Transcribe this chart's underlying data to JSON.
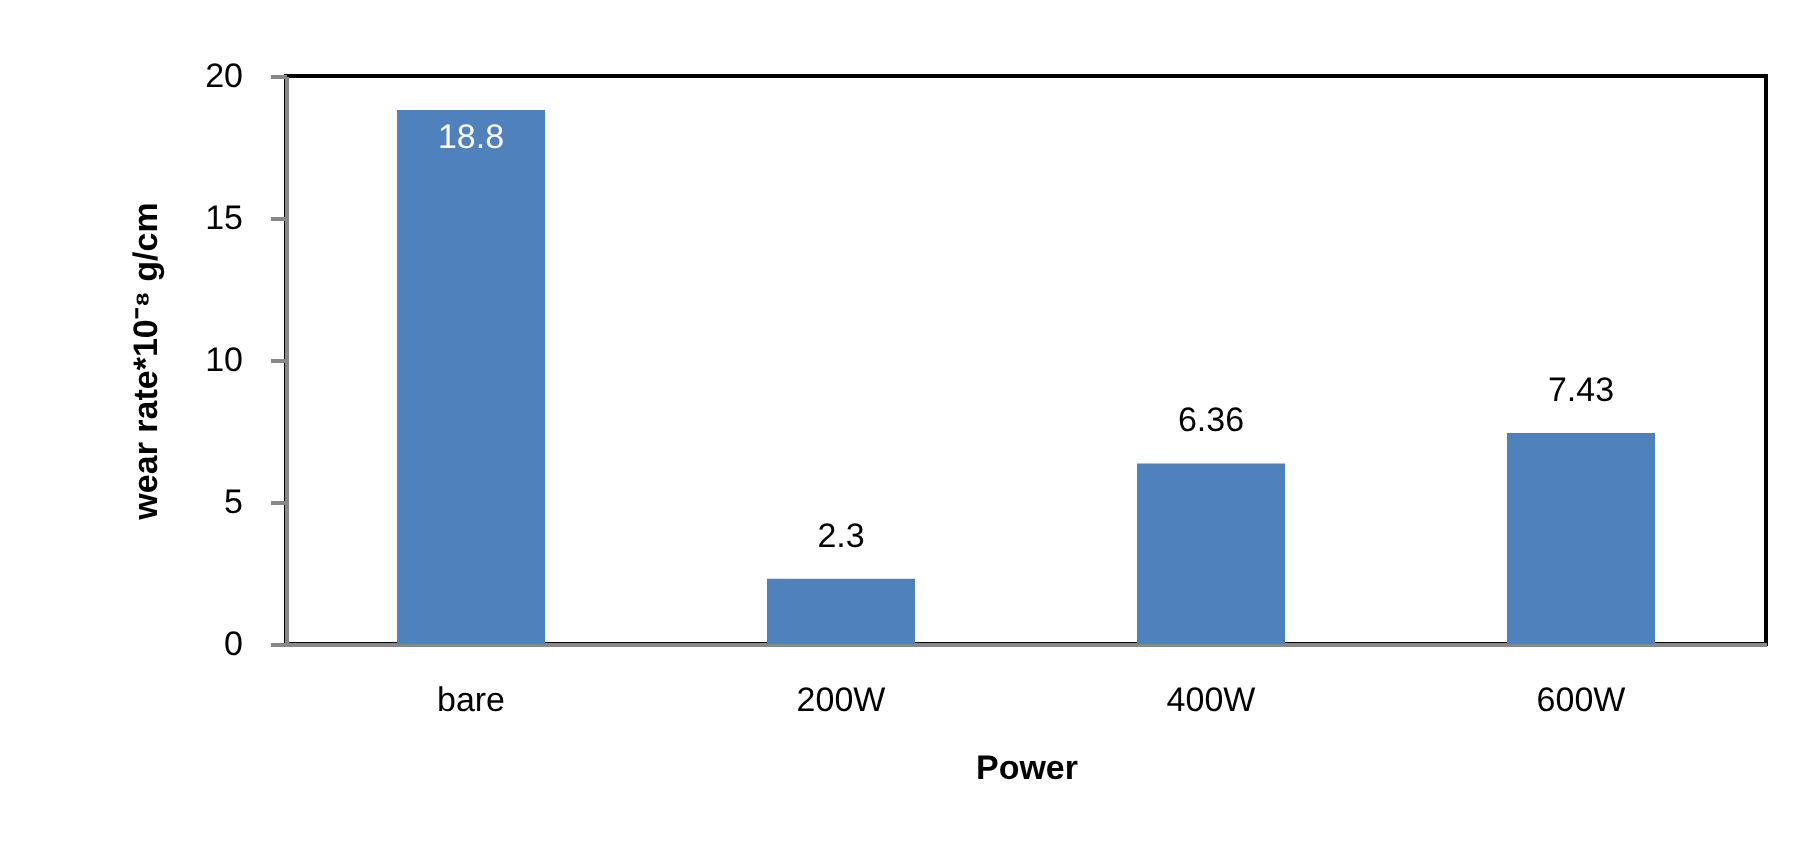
{
  "chart_data": {
    "type": "bar",
    "xlabel": "Power",
    "ylabel": "wear rate*10⁻⁸ g/cm",
    "categories": [
      "bare",
      "200W",
      "400W",
      "600W"
    ],
    "values": [
      18.8,
      2.3,
      6.36,
      7.43
    ],
    "color": "#4f81bd",
    "ylim": [
      0,
      20
    ],
    "yticks": [
      0,
      5,
      10,
      15,
      20
    ],
    "data_labels": true,
    "grid": false
  }
}
